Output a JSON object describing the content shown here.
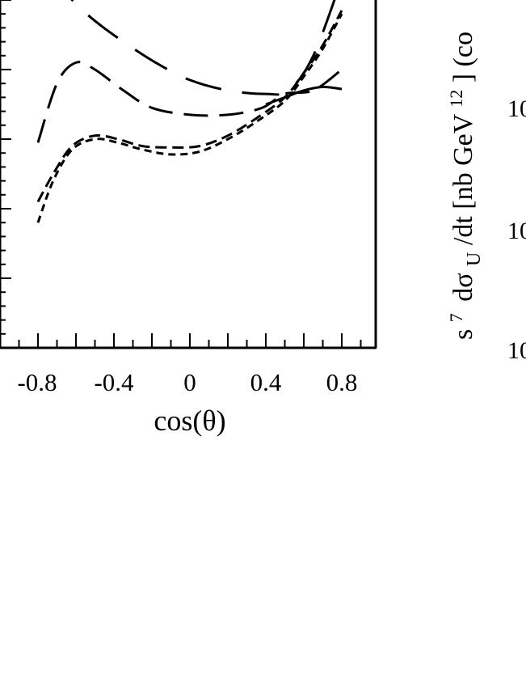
{
  "chart_data": [
    {
      "type": "line",
      "xlabel": "cos(θ)",
      "ylabel": "",
      "x_ticks": [
        "-0.8",
        "-0.4",
        "0",
        "0.4",
        "0.8"
      ],
      "xlim": [
        -1.0,
        1.0
      ],
      "ylim": [
        0,
        5.2
      ],
      "grid": false,
      "series": [
        {
          "style": "long-dash",
          "x": [
            -0.74,
            -0.62,
            -0.5,
            -0.35,
            -0.18,
            0.0,
            0.2,
            0.4,
            0.52,
            0.65,
            0.8
          ],
          "y": [
            5.4,
            5.0,
            4.7,
            4.4,
            4.1,
            3.85,
            3.7,
            3.65,
            3.7,
            4.2,
            5.3
          ]
        },
        {
          "style": "medium-dash",
          "x": [
            -0.8,
            -0.7,
            -0.6,
            -0.5,
            -0.35,
            -0.2,
            0.0,
            0.2,
            0.38,
            0.5,
            0.65,
            0.8
          ],
          "y": [
            2.95,
            3.8,
            4.1,
            4.0,
            3.7,
            3.45,
            3.35,
            3.35,
            3.45,
            3.65,
            3.7,
            4.0
          ]
        },
        {
          "style": "solid",
          "x": [
            0.4,
            0.5,
            0.6,
            0.7,
            0.8
          ],
          "y": [
            3.5,
            3.6,
            3.7,
            3.75,
            3.72
          ]
        },
        {
          "style": "short-dash",
          "x": [
            -0.8,
            -0.72,
            -0.62,
            -0.5,
            -0.38,
            -0.25,
            -0.1,
            0.05,
            0.2,
            0.35,
            0.5,
            0.6,
            0.7,
            0.8
          ],
          "y": [
            2.1,
            2.5,
            2.9,
            3.05,
            3.0,
            2.9,
            2.88,
            2.9,
            3.05,
            3.3,
            3.6,
            3.95,
            4.35,
            4.85
          ]
        },
        {
          "style": "dotted-dash",
          "x": [
            -0.8,
            -0.72,
            -0.62,
            -0.5,
            -0.38,
            -0.25,
            -0.1,
            0.05,
            0.2,
            0.35,
            0.5,
            0.6,
            0.7,
            0.8
          ],
          "y": [
            1.8,
            2.4,
            2.85,
            3.0,
            2.95,
            2.85,
            2.78,
            2.82,
            3.0,
            3.25,
            3.55,
            3.9,
            4.3,
            4.8
          ]
        }
      ]
    },
    {
      "type": "line",
      "ylabel_parts": {
        "s": "s",
        "exp7": "7",
        "dsigma": "dσ",
        "sub": "U",
        "per": "/dt [nb GeV",
        "exp12": "12",
        "tail": "] (co"
      },
      "tick_fragments": [
        "10",
        "10",
        "10"
      ]
    }
  ]
}
